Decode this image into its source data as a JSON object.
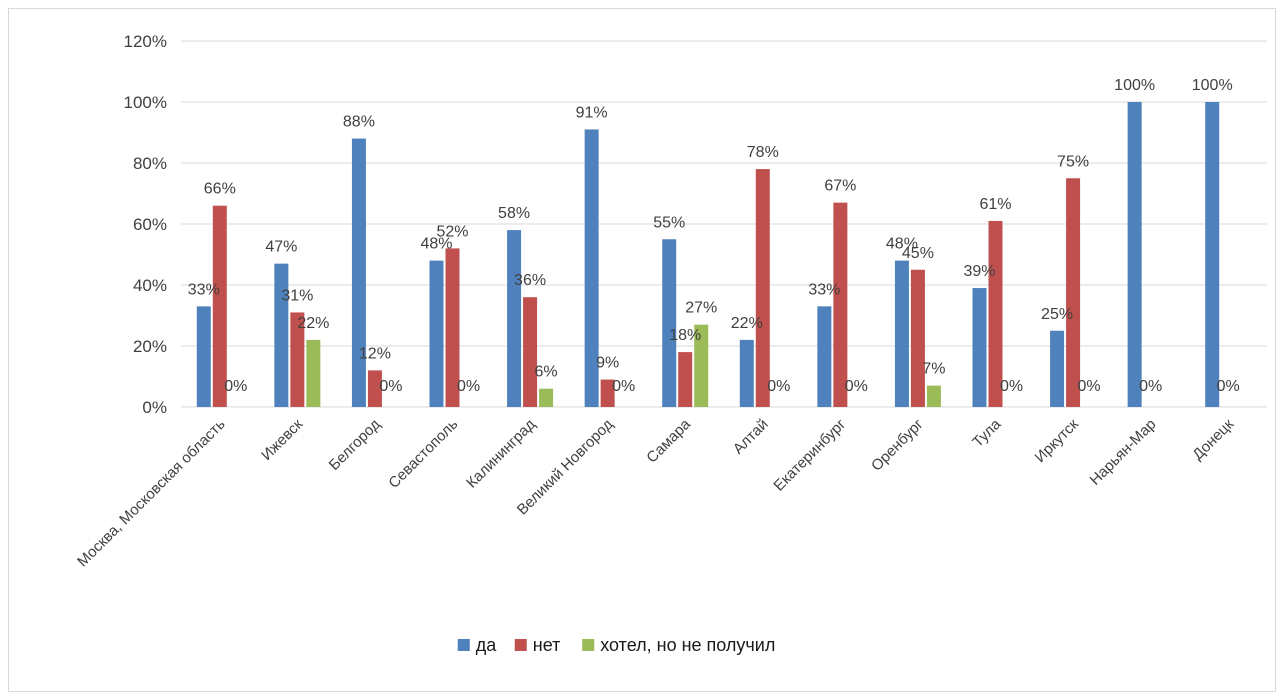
{
  "chart_data": {
    "type": "bar",
    "categories": [
      "Москва, Московская область",
      "Ижевск",
      "Белгород",
      "Севастополь",
      "Калининград",
      "Великий Новгород",
      "Самара",
      "Алтай",
      "Екатеринбург",
      "Оренбург",
      "Тула",
      "Иркутск",
      "Нарьян-Мар",
      "Донецк"
    ],
    "series": [
      {
        "name": "да",
        "color": "#4f81bd",
        "values": [
          33,
          47,
          88,
          48,
          58,
          91,
          55,
          22,
          33,
          48,
          39,
          25,
          100,
          100
        ]
      },
      {
        "name": "нет",
        "color": "#c0504d",
        "values": [
          66,
          31,
          12,
          52,
          36,
          9,
          18,
          78,
          67,
          45,
          61,
          75,
          0,
          0
        ]
      },
      {
        "name": "хотел, но не получил",
        "color": "#9bbb59",
        "values": [
          0,
          22,
          0,
          0,
          6,
          0,
          27,
          0,
          0,
          7,
          0,
          0,
          null,
          null
        ]
      }
    ],
    "y_ticks": [
      "0%",
      "20%",
      "40%",
      "60%",
      "80%",
      "100%",
      "120%"
    ],
    "ylim": [
      0,
      120
    ],
    "grid": true,
    "legend_position": "bottom",
    "title": "",
    "xlabel": "",
    "ylabel": ""
  }
}
